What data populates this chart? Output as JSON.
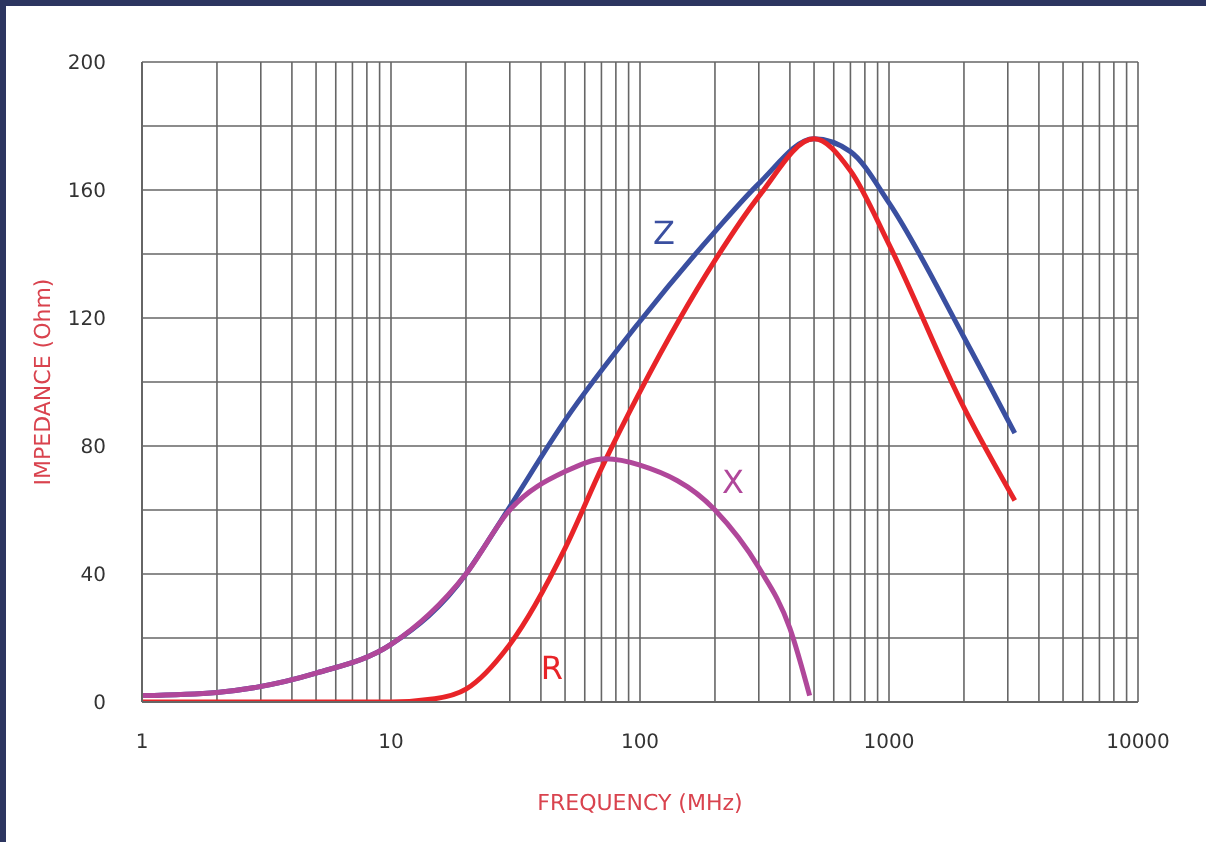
{
  "chart_data": {
    "type": "line",
    "xlabel": "FREQUENCY (MHz)",
    "ylabel": "IMPEDANCE (Ohm)",
    "log": "x",
    "grid": true,
    "marker": "none",
    "line_style": "solid",
    "xlim": [
      1,
      10000
    ],
    "xticks": [
      1,
      {
        "value": 2,
        "label": null
      },
      {
        "value": 3,
        "label": null
      },
      {
        "value": 4,
        "label": null
      },
      {
        "value": 5,
        "label": null
      },
      {
        "value": 6,
        "label": null
      },
      {
        "value": 7,
        "label": null
      },
      {
        "value": 8,
        "label": null
      },
      {
        "value": 9,
        "label": null
      },
      10,
      {
        "value": 20,
        "label": null
      },
      {
        "value": 30,
        "label": null
      },
      {
        "value": 40,
        "label": null
      },
      {
        "value": 50,
        "label": null
      },
      {
        "value": 60,
        "label": null
      },
      {
        "value": 70,
        "label": null
      },
      {
        "value": 80,
        "label": null
      },
      {
        "value": 90,
        "label": null
      },
      100,
      {
        "value": 200,
        "label": null
      },
      {
        "value": 300,
        "label": null
      },
      {
        "value": 400,
        "label": null
      },
      {
        "value": 500,
        "label": null
      },
      {
        "value": 600,
        "label": null
      },
      {
        "value": 700,
        "label": null
      },
      {
        "value": 800,
        "label": null
      },
      {
        "value": 900,
        "label": null
      },
      1000,
      {
        "value": 2000,
        "label": null
      },
      {
        "value": 3000,
        "label": null
      },
      {
        "value": 4000,
        "label": null
      },
      {
        "value": 5000,
        "label": null
      },
      {
        "value": 6000,
        "label": null
      },
      {
        "value": 7000,
        "label": null
      },
      {
        "value": 8000,
        "label": null
      },
      {
        "value": 9000,
        "label": null
      },
      10000
    ],
    "ylim": [
      0,
      200
    ],
    "yticks": [
      0,
      {
        "value": 20,
        "label": null
      },
      40,
      {
        "value": 60,
        "label": null
      },
      80,
      {
        "value": 100,
        "label": null
      },
      120,
      {
        "value": 140,
        "label": null
      },
      160,
      {
        "value": 180,
        "label": null
      },
      200
    ],
    "series": [
      {
        "name": "Z",
        "color": "#3a4fa0",
        "x": [
          1,
          2,
          5,
          10,
          20,
          23,
          30,
          50,
          100,
          200,
          300,
          500,
          700,
          1000,
          2000,
          3200
        ],
        "values": [
          2,
          3,
          9,
          18,
          40,
          47,
          61,
          88,
          119,
          147,
          162,
          176,
          172,
          156,
          114,
          84
        ]
      },
      {
        "name": "R",
        "color": "#e82428",
        "x": [
          1,
          5,
          10,
          15,
          20,
          30,
          50,
          70,
          100,
          200,
          300,
          500,
          700,
          1000,
          2000,
          3200
        ],
        "values": [
          0,
          0,
          0,
          1,
          4,
          18,
          48,
          73,
          97,
          138,
          158,
          176,
          166,
          143,
          92,
          63
        ]
      },
      {
        "name": "X",
        "color": "#b0479a",
        "x": [
          1,
          2,
          5,
          10,
          20,
          30,
          50,
          73,
          100,
          200,
          300,
          400,
          480
        ],
        "values": [
          2,
          3,
          9,
          18,
          40,
          60,
          72,
          76,
          74,
          60,
          42,
          23,
          2
        ]
      }
    ]
  }
}
